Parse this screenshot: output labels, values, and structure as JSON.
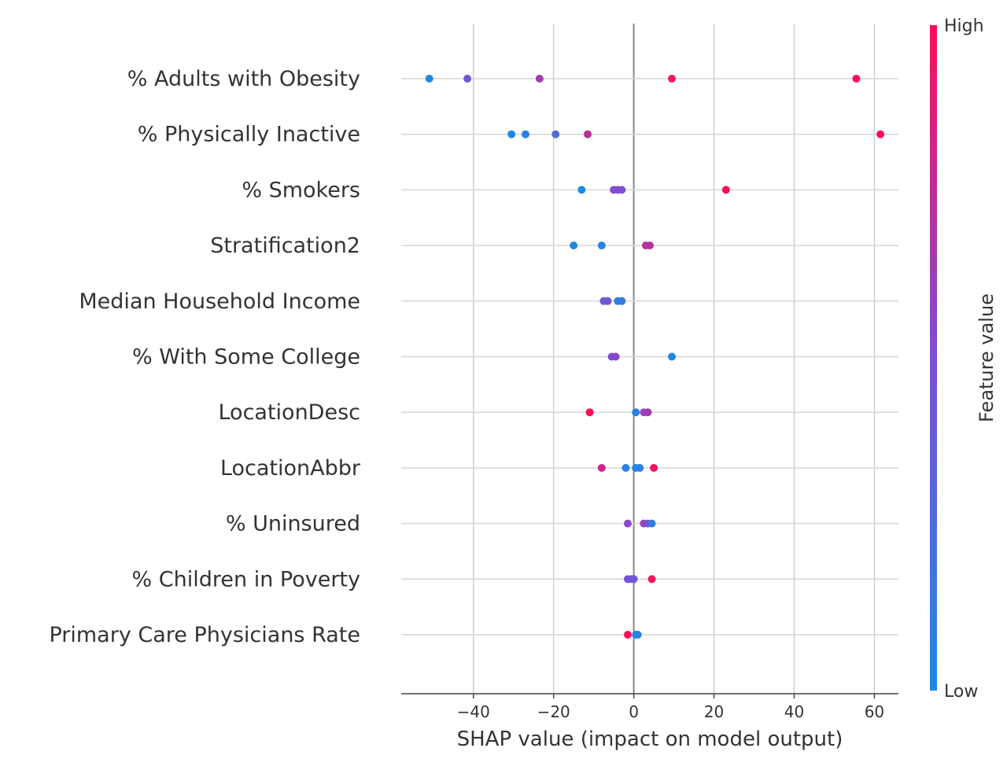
{
  "chart_data": {
    "type": "scatter",
    "title": "",
    "xlabel": "SHAP value (impact on model output)",
    "ylabel": "",
    "xlim": [
      -58,
      66
    ],
    "x_ticks": [
      -40,
      -20,
      0,
      20,
      40,
      60
    ],
    "grid": "vertical-major",
    "zero_line": true,
    "colorbar": {
      "title": "Feature value",
      "high_label": "High",
      "low_label": "Low",
      "low_color": "#1e88e5",
      "high_color": "#ff0d57"
    },
    "features": [
      {
        "name": "% Adults with Obesity",
        "points": [
          {
            "x": -51,
            "v": 0.0
          },
          {
            "x": -41.5,
            "v": 0.45
          },
          {
            "x": -23.5,
            "v": 0.65
          },
          {
            "x": 9.5,
            "v": 0.95
          },
          {
            "x": 55.5,
            "v": 1.0
          }
        ]
      },
      {
        "name": "% Physically Inactive",
        "points": [
          {
            "x": -30.5,
            "v": 0.0
          },
          {
            "x": -27,
            "v": 0.05
          },
          {
            "x": -19.5,
            "v": 0.25
          },
          {
            "x": -11.5,
            "v": 0.75
          },
          {
            "x": 61.5,
            "v": 1.0
          }
        ]
      },
      {
        "name": "% Smokers",
        "points": [
          {
            "x": -13,
            "v": 0.0
          },
          {
            "x": -5,
            "v": 0.5
          },
          {
            "x": -4,
            "v": 0.55
          },
          {
            "x": -3,
            "v": 0.5
          },
          {
            "x": 23,
            "v": 1.0
          }
        ]
      },
      {
        "name": "Stratification2",
        "points": [
          {
            "x": -15,
            "v": 0.0
          },
          {
            "x": -8,
            "v": 0.05
          },
          {
            "x": 3,
            "v": 0.75
          },
          {
            "x": 4,
            "v": 0.7
          }
        ]
      },
      {
        "name": "Median Household Income",
        "points": [
          {
            "x": -7.5,
            "v": 0.4
          },
          {
            "x": -6.5,
            "v": 0.45
          },
          {
            "x": -4,
            "v": 0.1
          },
          {
            "x": -3,
            "v": 0.15
          }
        ]
      },
      {
        "name": "% With Some College",
        "points": [
          {
            "x": -5.5,
            "v": 0.5
          },
          {
            "x": -4.5,
            "v": 0.55
          },
          {
            "x": 9.5,
            "v": 0.0
          }
        ]
      },
      {
        "name": "LocationDesc",
        "points": [
          {
            "x": -11,
            "v": 1.0
          },
          {
            "x": 0.5,
            "v": 0.05
          },
          {
            "x": 2.5,
            "v": 0.6
          },
          {
            "x": 3.5,
            "v": 0.65
          }
        ]
      },
      {
        "name": "LocationAbbr",
        "points": [
          {
            "x": -8,
            "v": 0.8
          },
          {
            "x": -2,
            "v": 0.05
          },
          {
            "x": 0.5,
            "v": 0.0
          },
          {
            "x": 1.5,
            "v": 0.1
          },
          {
            "x": 5,
            "v": 0.95
          }
        ]
      },
      {
        "name": "% Uninsured",
        "points": [
          {
            "x": -1.5,
            "v": 0.55
          },
          {
            "x": 2.5,
            "v": 0.6
          },
          {
            "x": 3.5,
            "v": 0.5
          },
          {
            "x": 4.5,
            "v": 0.1
          }
        ]
      },
      {
        "name": "% Children in Poverty",
        "points": [
          {
            "x": -1.5,
            "v": 0.45
          },
          {
            "x": -0.5,
            "v": 0.5
          },
          {
            "x": 0,
            "v": 0.4
          },
          {
            "x": 4.5,
            "v": 0.95
          }
        ]
      },
      {
        "name": "Primary Care Physicians Rate",
        "points": [
          {
            "x": -1.5,
            "v": 1.0
          },
          {
            "x": 0.5,
            "v": 0.1
          },
          {
            "x": 1,
            "v": 0.05
          }
        ]
      }
    ]
  }
}
